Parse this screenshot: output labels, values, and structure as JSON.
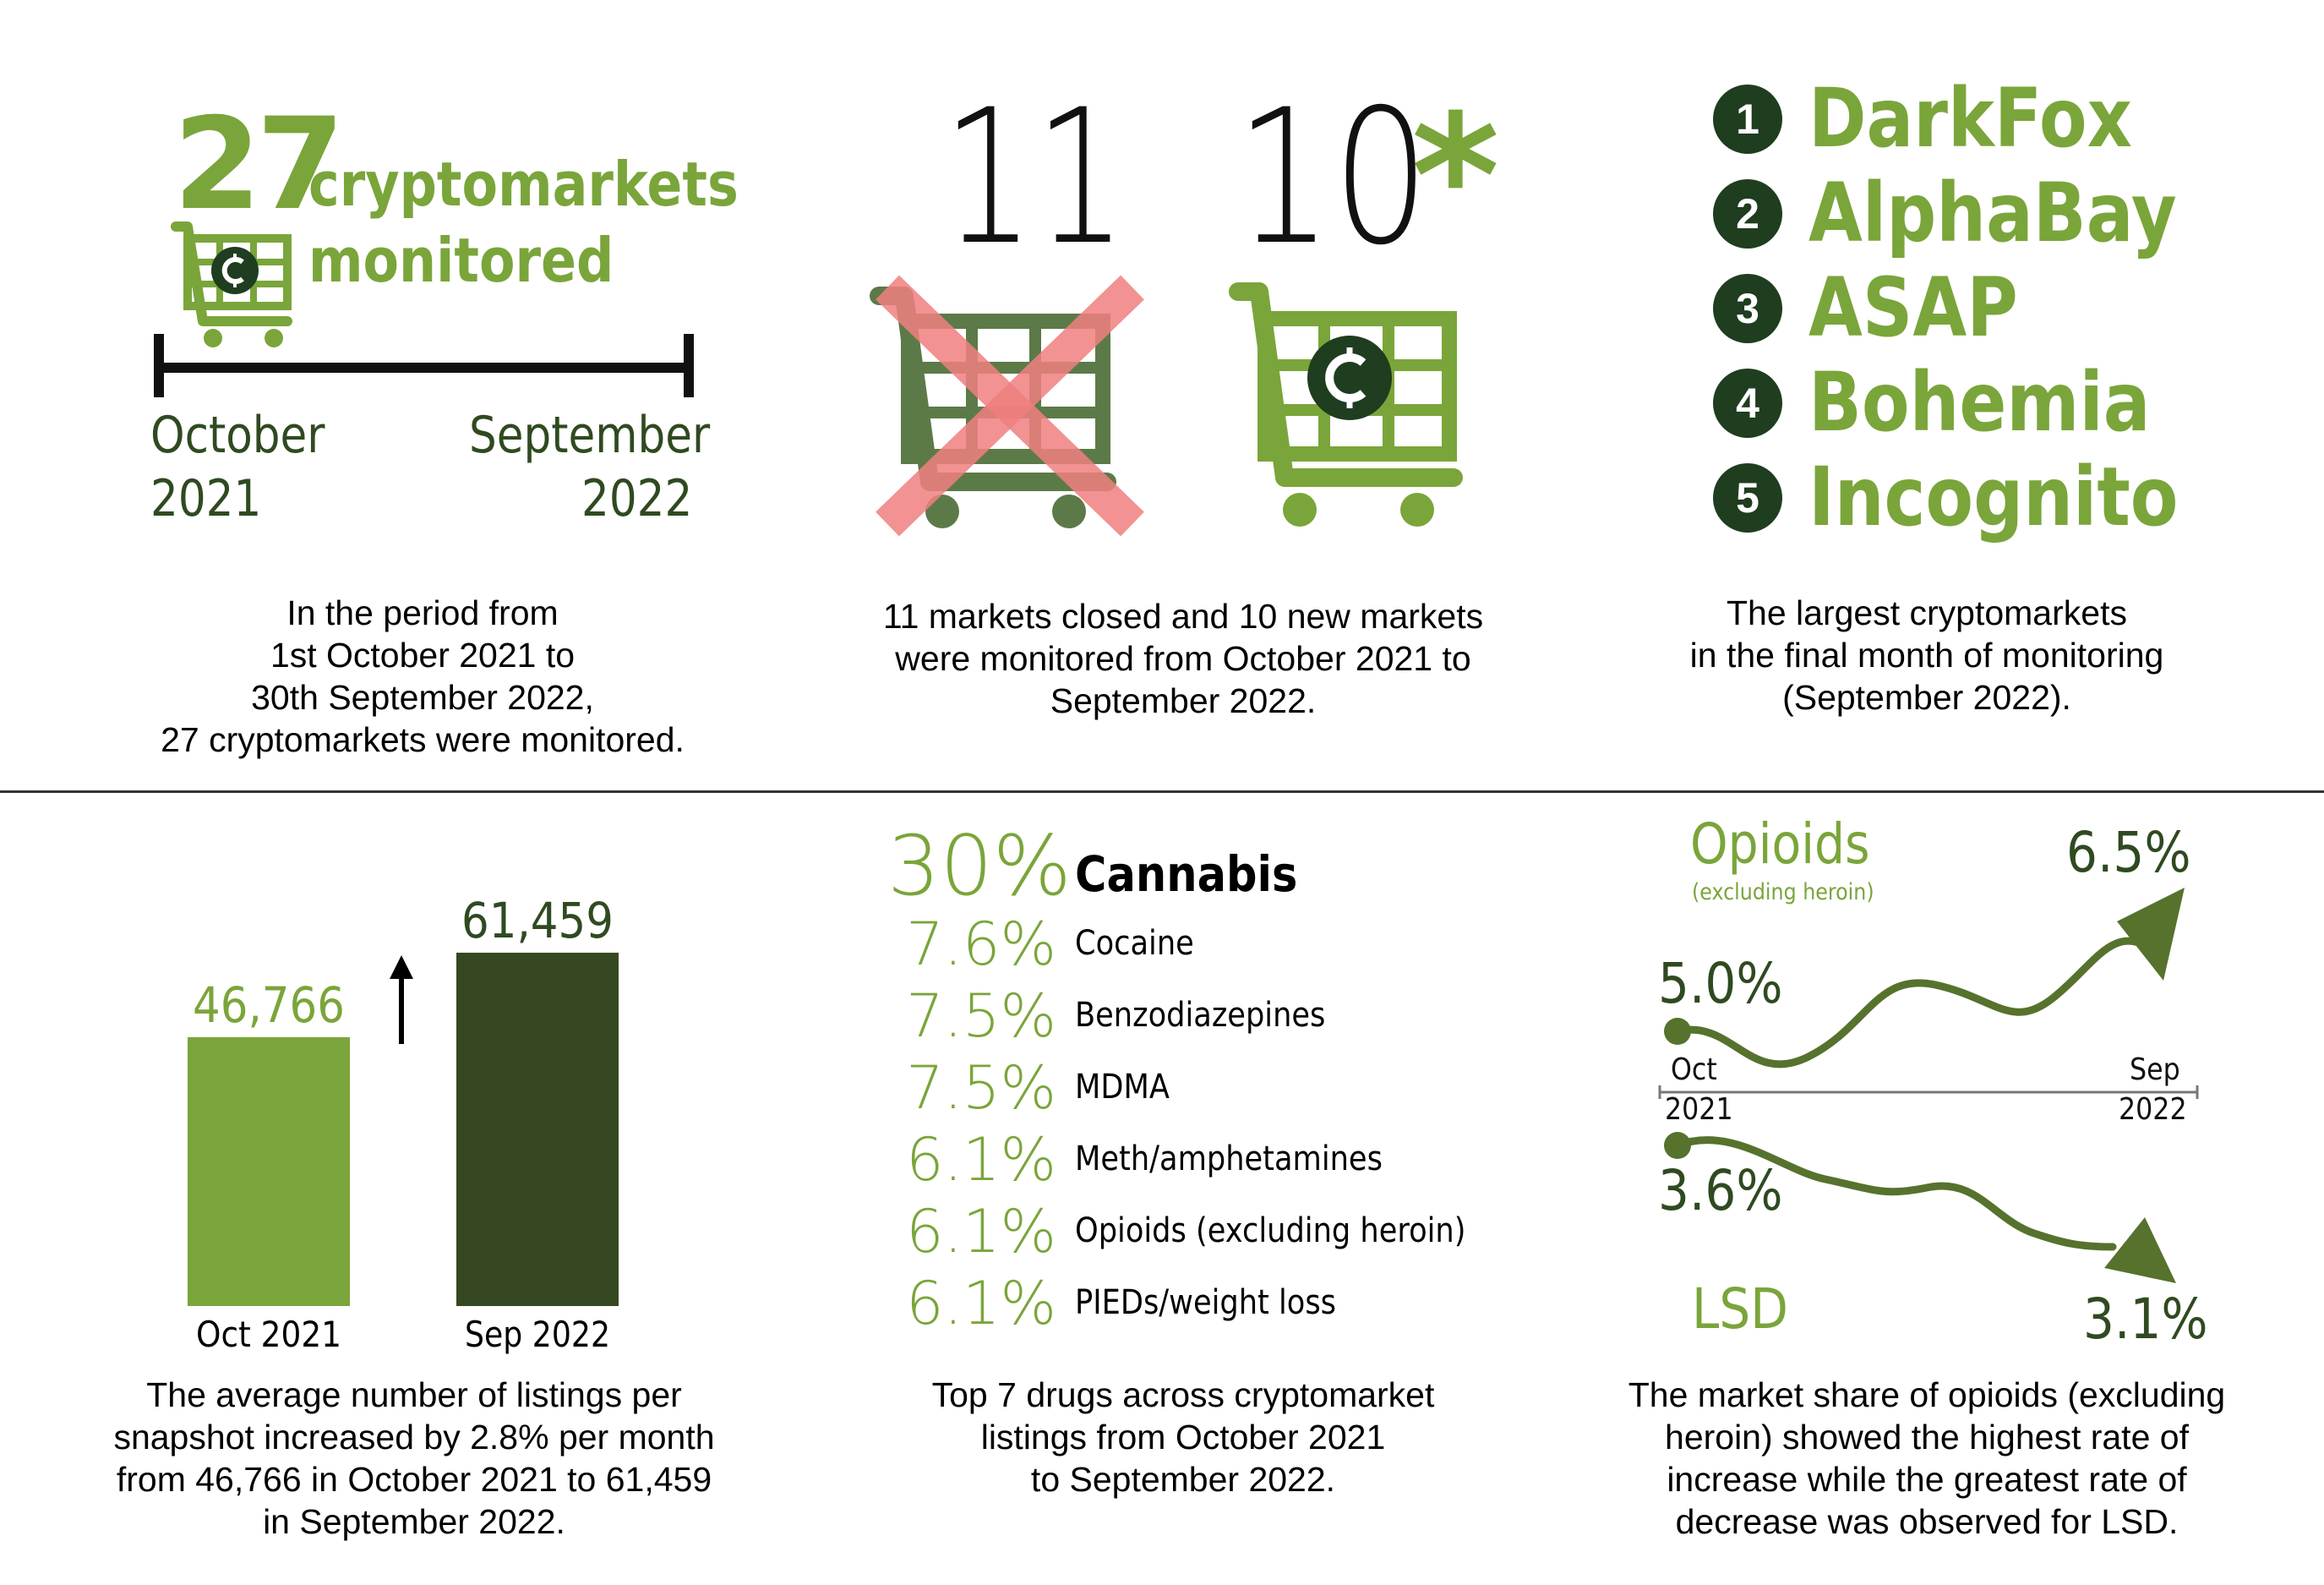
{
  "panel1": {
    "count": "27",
    "label_line1": "cryptomarkets",
    "label_line2": "monitored",
    "start_month": "October",
    "start_year": "2021",
    "end_month": "September",
    "end_year": "2022",
    "caption": [
      "In the period from",
      "1st October 2021 to",
      "30th September 2022,",
      "27 cryptomarkets were monitored."
    ]
  },
  "panel2": {
    "closed_count": "11",
    "new_count": "10",
    "asterisk": "*",
    "caption": [
      "11 markets closed and 10 new markets",
      "were monitored from October 2021 to",
      "September 2022."
    ]
  },
  "panel3": {
    "ranks": [
      {
        "n": "1",
        "name": "DarkFox"
      },
      {
        "n": "2",
        "name": "AlphaBay"
      },
      {
        "n": "3",
        "name": "ASAP"
      },
      {
        "n": "4",
        "name": "Bohemia"
      },
      {
        "n": "5",
        "name": "Incognito"
      }
    ],
    "caption": [
      "The largest cryptomarkets",
      "in the final month of monitoring",
      "(September 2022)."
    ]
  },
  "chart_data": [
    {
      "type": "bar",
      "categories": [
        "Oct 2021",
        "Sep 2022"
      ],
      "values": [
        46766,
        61459
      ],
      "value_labels": [
        "46,766",
        "61,459"
      ],
      "colors": [
        "#7aa53a",
        "#364821"
      ],
      "ylim": [
        0,
        61459
      ]
    },
    {
      "type": "table",
      "rows": [
        {
          "pct": "30%",
          "drug": "Cannabis"
        },
        {
          "pct": "7.6%",
          "drug": "Cocaine"
        },
        {
          "pct": "7.5%",
          "drug": "Benzodiazepines"
        },
        {
          "pct": "7.5%",
          "drug": "MDMA"
        },
        {
          "pct": "6.1%",
          "drug": "Meth/amphetamines"
        },
        {
          "pct": "6.1%",
          "drug": "Opioids (excluding heroin)"
        },
        {
          "pct": "6.1%",
          "drug": "PIEDs/weight loss"
        }
      ]
    },
    {
      "type": "line",
      "x": [
        "Oct 2021",
        "Sep 2022"
      ],
      "series": [
        {
          "name": "Opioids",
          "subtitle": "(excluding heroin)",
          "start_label": "5.0%",
          "end_label": "6.5%",
          "values": [
            5.0,
            6.5
          ]
        },
        {
          "name": "LSD",
          "start_label": "3.6%",
          "end_label": "3.1%",
          "values": [
            3.6,
            3.1
          ]
        }
      ],
      "axis_start_month": "Oct",
      "axis_start_year": "2021",
      "axis_end_month": "Sep",
      "axis_end_year": "2022"
    }
  ],
  "captions": {
    "listings": [
      "The average number of listings per",
      "snapshot increased by 2.8% per month",
      "from 46,766 in October 2021 to 61,459",
      "in September 2022."
    ],
    "drugs": [
      "Top 7 drugs across cryptomarket",
      "listings from October 2021",
      "to September 2022."
    ],
    "trends": [
      "The market share of opioids (excluding",
      "heroin) showed the highest rate of",
      "increase while the greatest rate of",
      "decrease was observed for LSD."
    ]
  },
  "colors": {
    "light_green": "#7aa53a",
    "dark_green": "#2f4a20",
    "darkest_green": "#1f3d1f",
    "red_x": "#f08080",
    "dark_bar": "#364821"
  },
  "icons": [
    "shopping-cart-icon",
    "cryptocurrency-coin-icon",
    "cross-mark-icon",
    "up-arrow-icon"
  ]
}
